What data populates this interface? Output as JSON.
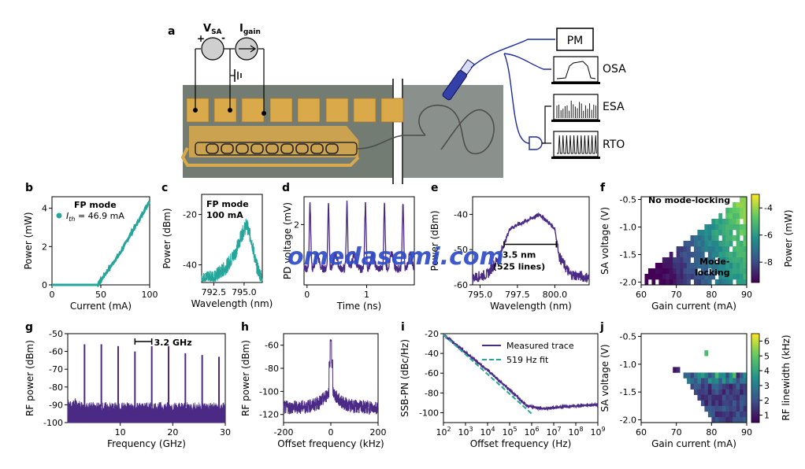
{
  "colors": {
    "teal": "#26A69A",
    "purple": "#4B2A86",
    "gold": "#D9A94A",
    "chip": "#7E8B86",
    "watermark": "#2D4CC8",
    "device_grey": "#c9c9c9"
  },
  "schematic": {
    "letter": "a",
    "vsa_label": "V",
    "vsa_sub": "SA",
    "igain_label": "I",
    "igain_sub": "gain",
    "plus": "+",
    "minus": "-",
    "pm": "PM",
    "osa": "OSA",
    "esa": "ESA",
    "rto": "RTO"
  },
  "watermark": {
    "text": "omedasemi.com"
  },
  "chart_data": [
    {
      "id": "b",
      "type": "scatter",
      "xlabel": "Current (mA)",
      "ylabel": "Power (mW)",
      "xlim": [
        0,
        100
      ],
      "ylim": [
        0,
        4.6
      ],
      "xticks": [
        "0",
        "50",
        "100"
      ],
      "yticks": [
        "0",
        "2",
        "4"
      ],
      "annotation_title": "FP mode",
      "legend": "I_th = 46.9 mA",
      "legend_parts": {
        "var": "I",
        "sub": "th",
        "rest": " = 46.9 mA"
      },
      "threshold": 46.9,
      "x": [
        0,
        46.9,
        60,
        70,
        80,
        90,
        100
      ],
      "values": [
        0,
        0,
        0.96,
        1.68,
        2.6,
        3.45,
        4.4
      ]
    },
    {
      "id": "c",
      "type": "line",
      "xlabel": "Wavelength (nm)",
      "ylabel": "Power (dBm)",
      "xlim": [
        791.5,
        796.5
      ],
      "ylim": [
        -47,
        -12
      ],
      "xticks": [
        "792.5",
        "795.0"
      ],
      "yticks": [
        "-20",
        "-40"
      ],
      "annotation_line1": "FP mode",
      "annotation_line2": "100 mA",
      "x": [
        791.5,
        792.5,
        793.5,
        794.3,
        794.8,
        795.2,
        795.6,
        796.0,
        796.5
      ],
      "values": [
        -46,
        -45,
        -41,
        -35,
        -28,
        -24,
        -30,
        -40,
        -46
      ]
    },
    {
      "id": "d",
      "type": "line",
      "xlabel": "Time (ns)",
      "ylabel": "PD voltage (mV)",
      "xlim": [
        -0.05,
        1.8
      ],
      "ylim": [
        -0.6,
        3.2
      ],
      "xticks": [
        "0",
        "1"
      ],
      "yticks": [
        "2"
      ],
      "period_ns": 0.312,
      "peaks_ns": [
        0.05,
        0.36,
        0.67,
        0.98,
        1.3,
        1.61
      ],
      "peak_mv": 2.8,
      "floor_mv": 0.1
    },
    {
      "id": "e",
      "type": "line",
      "xlabel": "Wavelength (nm)",
      "ylabel": "Power (dBm)",
      "xlim": [
        794.5,
        802.3
      ],
      "ylim": [
        -60,
        -35
      ],
      "xticks": [
        "795.0",
        "797.5",
        "800.0"
      ],
      "yticks": [
        "-40",
        "-50",
        "-60"
      ],
      "annotation_line1": "3.5 nm",
      "annotation_line2": "(525 lines)",
      "bandwidth_range": [
        796.6,
        800.1
      ],
      "x": [
        794.5,
        795.5,
        796.3,
        797.0,
        798.5,
        799.0,
        799.5,
        800.0,
        800.3,
        801.0,
        802.3
      ],
      "values": [
        -58,
        -57,
        -52,
        -44,
        -41,
        -40,
        -42,
        -44,
        -52,
        -57,
        -58
      ]
    },
    {
      "id": "f",
      "type": "heatmap",
      "xlabel": "Gain current (mA)",
      "ylabel": "SA voltage (V)",
      "colorbar_label": "Power (mW)",
      "xlim": [
        60,
        90
      ],
      "ylim": [
        -2.05,
        -0.45
      ],
      "xticks": [
        "60",
        "70",
        "80",
        "90"
      ],
      "yticks": [
        "-0.5",
        "-1.0",
        "-1.5",
        "-2.0"
      ],
      "cbar_ticks": [
        "-4",
        "-6",
        "-8"
      ],
      "cbar_range": [
        -9.5,
        -3
      ],
      "label_top": "No mode-locking",
      "label_bottom_line1": "Mode-",
      "label_bottom_line2": "locking"
    },
    {
      "id": "g",
      "type": "bar",
      "xlabel": "Frequency (GHz)",
      "ylabel": "RF power (dBm)",
      "xlim": [
        0,
        30
      ],
      "ylim": [
        -100,
        -50
      ],
      "xticks": [
        "10",
        "20",
        "30"
      ],
      "yticks": [
        "-50",
        "-60",
        "-70",
        "-80",
        "-90",
        "-100"
      ],
      "annotation": "3.2 GHz",
      "x": [
        3.2,
        6.4,
        9.6,
        12.8,
        16.0,
        19.2,
        22.4,
        25.6,
        28.8
      ],
      "values": [
        -56,
        -56,
        -57,
        -60,
        -57,
        -57,
        -61,
        -62,
        -63
      ],
      "noise_floor": -91
    },
    {
      "id": "h",
      "type": "line",
      "xlabel": "Offset frequency (kHz)",
      "ylabel": "RF power (dBm)",
      "xlim": [
        -200,
        200
      ],
      "ylim": [
        -127,
        -50
      ],
      "xticks": [
        "-200",
        "0",
        "200"
      ],
      "yticks": [
        "-60",
        "-80",
        "-100",
        "-120"
      ],
      "peak": -56,
      "floor": -114
    },
    {
      "id": "i",
      "type": "line",
      "xlabel": "Offset frequency (Hz)",
      "ylabel": "SSB-PN (dBc/Hz)",
      "xlim_log10": [
        2,
        9
      ],
      "ylim": [
        -110,
        -20
      ],
      "xticks": [
        "10^2",
        "10^3",
        "10^4",
        "10^5",
        "10^6",
        "10^7",
        "10^8",
        "10^9"
      ],
      "xtick_base": "10",
      "xtick_exps": [
        "2",
        "3",
        "4",
        "5",
        "6",
        "7",
        "8",
        "9"
      ],
      "yticks": [
        "-20",
        "-40",
        "-60",
        "-80",
        "-100"
      ],
      "series": [
        {
          "name": "Measured trace",
          "x_log10": [
            2,
            3,
            4,
            5,
            5.8,
            6.5,
            7.0,
            8.0,
            9.0
          ],
          "values": [
            -21,
            -39,
            -57,
            -77,
            -93,
            -96,
            -95,
            -93,
            -92
          ]
        },
        {
          "name": "519 Hz fit",
          "x_log10": [
            2,
            3,
            4,
            5,
            5.8,
            6.05
          ],
          "values": [
            -21,
            -41,
            -61,
            -81,
            -97,
            -102
          ]
        }
      ]
    },
    {
      "id": "j",
      "type": "heatmap",
      "xlabel": "Gain current (mA)",
      "ylabel": "SA voltage (V)",
      "colorbar_label": "RF linewidth (kHz)",
      "xlim": [
        60,
        90
      ],
      "ylim": [
        -2.05,
        -0.45
      ],
      "xticks": [
        "60",
        "70",
        "80",
        "90"
      ],
      "yticks": [
        "-0.5",
        "-1.0",
        "-1.5",
        "-2.0"
      ],
      "cbar_ticks": [
        "1",
        "2",
        "3",
        "4",
        "5",
        "6"
      ],
      "cbar_range": [
        0.5,
        6.5
      ]
    }
  ]
}
